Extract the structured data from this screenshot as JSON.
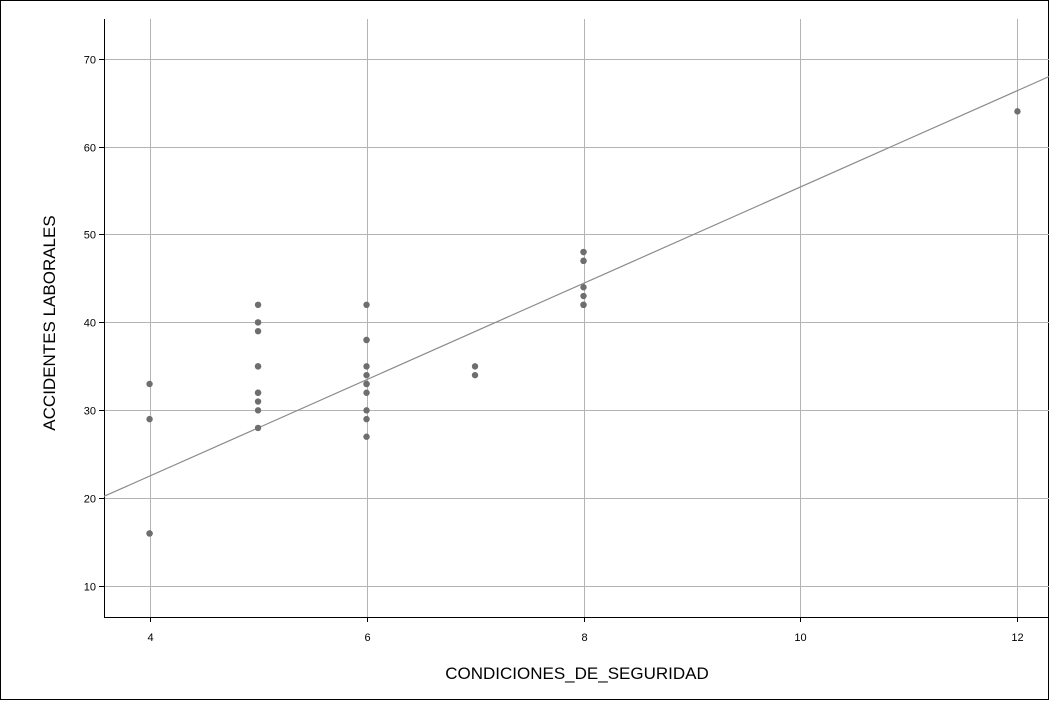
{
  "chart_data": {
    "type": "scatter",
    "title": "",
    "xlabel": "CONDICIONES_DE_SEGURIDAD",
    "ylabel": "ACCIDENTES LABORALES",
    "xlim": [
      3.58,
      12.3
    ],
    "ylim": [
      6.5,
      74.5
    ],
    "xticks": [
      4,
      6,
      8,
      10,
      12
    ],
    "yticks": [
      10,
      20,
      30,
      40,
      50,
      60,
      70
    ],
    "grid": true,
    "legend": "none",
    "point_color": "#6e6e6e",
    "line_color": "#8c8c8c",
    "grid_color": "#b4b4b4",
    "fit_line": {
      "slope": 5.48,
      "intercept": 0.6
    },
    "points": [
      {
        "x": 4,
        "y": 33
      },
      {
        "x": 4,
        "y": 29
      },
      {
        "x": 4,
        "y": 16
      },
      {
        "x": 4,
        "y": 16
      },
      {
        "x": 5,
        "y": 42
      },
      {
        "x": 5,
        "y": 40
      },
      {
        "x": 5,
        "y": 40
      },
      {
        "x": 5,
        "y": 39
      },
      {
        "x": 5,
        "y": 35
      },
      {
        "x": 5,
        "y": 35
      },
      {
        "x": 5,
        "y": 32
      },
      {
        "x": 5,
        "y": 32
      },
      {
        "x": 5,
        "y": 31
      },
      {
        "x": 5,
        "y": 30
      },
      {
        "x": 5,
        "y": 28
      },
      {
        "x": 6,
        "y": 42
      },
      {
        "x": 6,
        "y": 38
      },
      {
        "x": 6,
        "y": 38
      },
      {
        "x": 6,
        "y": 35
      },
      {
        "x": 6,
        "y": 34
      },
      {
        "x": 6,
        "y": 33
      },
      {
        "x": 6,
        "y": 33
      },
      {
        "x": 6,
        "y": 32
      },
      {
        "x": 6,
        "y": 30
      },
      {
        "x": 6,
        "y": 29
      },
      {
        "x": 6,
        "y": 27
      },
      {
        "x": 7,
        "y": 35
      },
      {
        "x": 7,
        "y": 34
      },
      {
        "x": 8,
        "y": 48
      },
      {
        "x": 8,
        "y": 48
      },
      {
        "x": 8,
        "y": 47
      },
      {
        "x": 8,
        "y": 47
      },
      {
        "x": 8,
        "y": 44
      },
      {
        "x": 8,
        "y": 43
      },
      {
        "x": 8,
        "y": 42
      },
      {
        "x": 8,
        "y": 42
      },
      {
        "x": 12,
        "y": 64
      }
    ]
  }
}
